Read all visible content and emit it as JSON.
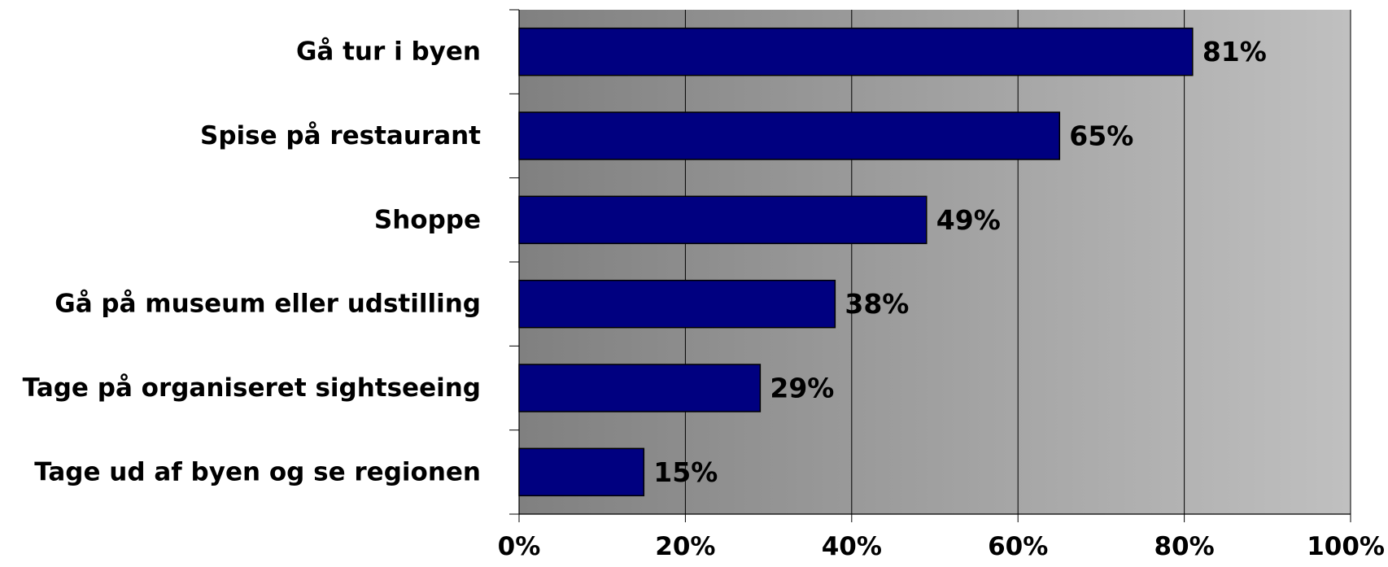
{
  "chart_data": {
    "type": "bar",
    "orientation": "horizontal",
    "categories": [
      "Gå tur i byen",
      "Spise på restaurant",
      "Shoppe",
      "Gå på museum eller udstilling",
      "Tage på organiseret sightseeing",
      "Tage ud af byen og se regionen"
    ],
    "values": [
      81,
      65,
      49,
      38,
      29,
      15
    ],
    "data_labels": [
      "81%",
      "65%",
      "49%",
      "38%",
      "29%",
      "15%"
    ],
    "xlim": [
      0,
      100
    ],
    "x_ticks": [
      0,
      20,
      40,
      60,
      80,
      100
    ],
    "x_tick_labels": [
      "0%",
      "20%",
      "40%",
      "60%",
      "80%",
      "100%"
    ],
    "title": "",
    "xlabel": "",
    "ylabel": "",
    "grid": true,
    "legend": "none",
    "colors": {
      "bar": "#000080",
      "bar_edge": "#000000",
      "plot_bg_start": "#808080",
      "plot_bg_end": "#c0c0c0",
      "gridline": "#000000"
    }
  }
}
